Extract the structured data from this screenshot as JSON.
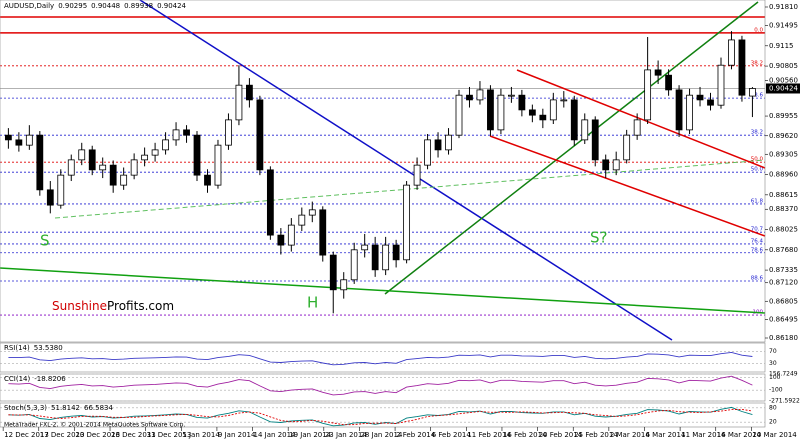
{
  "chart_data": [
    {
      "type": "candlestick",
      "title": "AUDUSD,Daily",
      "up_color": "#ffffff",
      "down_color": "#000000",
      "outline_color": "#000000",
      "candles": {
        "open": [
          0.8963,
          0.8955,
          0.8946,
          0.8963,
          0.887,
          0.8844,
          0.8895,
          0.8921,
          0.8938,
          0.8904,
          0.8912,
          0.8878,
          0.8895,
          0.8921,
          0.8929,
          0.8938,
          0.8955,
          0.8972,
          0.8963,
          0.8895,
          0.8878,
          0.8946,
          0.8989,
          0.9048,
          0.9023,
          0.8904,
          0.8793,
          0.8776,
          0.881,
          0.8827,
          0.8836,
          0.8759,
          0.87,
          0.8717,
          0.8768,
          0.8776,
          0.8734,
          0.8776,
          0.8751,
          0.8878,
          0.8912,
          0.8955,
          0.8938,
          0.8963,
          0.9031,
          0.9023,
          0.904,
          0.8972,
          0.9031,
          0.9031,
          0.9006,
          0.8997,
          0.8989,
          0.9023,
          0.9023,
          0.8955,
          0.8989,
          0.8921,
          0.8904,
          0.8921,
          0.8963,
          0.8989,
          0.9074,
          0.9065,
          0.904,
          0.8972,
          0.9031,
          0.9023,
          0.9014,
          0.9082,
          0.9125,
          0.90295
        ],
        "high": [
          0.8975,
          0.8968,
          0.898,
          0.897,
          0.8885,
          0.8905,
          0.893,
          0.895,
          0.8945,
          0.8925,
          0.892,
          0.8908,
          0.8932,
          0.8942,
          0.895,
          0.8968,
          0.8985,
          0.898,
          0.897,
          0.8905,
          0.8955,
          0.9,
          0.9082,
          0.906,
          0.903,
          0.891,
          0.8805,
          0.8822,
          0.884,
          0.885,
          0.8842,
          0.8765,
          0.873,
          0.878,
          0.8795,
          0.879,
          0.879,
          0.8785,
          0.8885,
          0.8925,
          0.8965,
          0.8968,
          0.8975,
          0.904,
          0.9045,
          0.9055,
          0.9048,
          0.9042,
          0.9045,
          0.904,
          0.9015,
          0.9008,
          0.9035,
          0.9038,
          0.903,
          0.9,
          0.8995,
          0.893,
          0.8935,
          0.8972,
          0.9,
          0.913,
          0.909,
          0.9075,
          0.9048,
          0.9042,
          0.9045,
          0.9035,
          0.9095,
          0.914,
          0.9132,
          0.90448
        ],
        "low": [
          0.894,
          0.8935,
          0.8938,
          0.886,
          0.883,
          0.8838,
          0.8885,
          0.8912,
          0.8895,
          0.889,
          0.8865,
          0.887,
          0.8888,
          0.891,
          0.8918,
          0.893,
          0.8945,
          0.895,
          0.8885,
          0.8865,
          0.8872,
          0.8938,
          0.898,
          0.901,
          0.8895,
          0.8785,
          0.876,
          0.8765,
          0.88,
          0.8815,
          0.8748,
          0.866,
          0.8685,
          0.871,
          0.8755,
          0.8722,
          0.8725,
          0.8738,
          0.8745,
          0.887,
          0.8905,
          0.8925,
          0.893,
          0.8958,
          0.901,
          0.9015,
          0.8962,
          0.8965,
          0.9018,
          0.8995,
          0.8985,
          0.8975,
          0.8982,
          0.901,
          0.8945,
          0.8948,
          0.891,
          0.889,
          0.8895,
          0.8915,
          0.8955,
          0.8982,
          0.905,
          0.903,
          0.896,
          0.8965,
          0.9012,
          0.9005,
          0.9008,
          0.9075,
          0.902,
          0.89938
        ],
        "close": [
          0.8955,
          0.8946,
          0.8963,
          0.887,
          0.8844,
          0.8895,
          0.8921,
          0.8938,
          0.8904,
          0.8912,
          0.8878,
          0.8895,
          0.8921,
          0.8929,
          0.8938,
          0.8955,
          0.8972,
          0.8963,
          0.8895,
          0.8878,
          0.8946,
          0.8989,
          0.9048,
          0.9023,
          0.8904,
          0.8793,
          0.8776,
          0.881,
          0.8827,
          0.8836,
          0.8759,
          0.87,
          0.8717,
          0.8768,
          0.8776,
          0.8734,
          0.8776,
          0.8751,
          0.8878,
          0.8912,
          0.8955,
          0.8938,
          0.8963,
          0.9031,
          0.9023,
          0.904,
          0.8972,
          0.9031,
          0.9031,
          0.9006,
          0.8997,
          0.8989,
          0.9023,
          0.9023,
          0.8955,
          0.8989,
          0.8921,
          0.8904,
          0.8921,
          0.8963,
          0.8989,
          0.9074,
          0.9065,
          0.904,
          0.8972,
          0.9031,
          0.9023,
          0.9014,
          0.9082,
          0.9125,
          0.9031,
          0.90424
        ]
      },
      "xlim": [
        -0.8,
        72.2
      ],
      "xticks": [
        {
          "value": -0.5,
          "label": "12 Dec 2013"
        },
        {
          "value": 2.9,
          "label": "17 Dec 2013"
        },
        {
          "value": 6.3,
          "label": "20 Dec 2013"
        },
        {
          "value": 9.7,
          "label": "26 Dec 2013"
        },
        {
          "value": 13.1,
          "label": "31 Dec 2013"
        },
        {
          "value": 16.5,
          "label": "5 Jan 2014"
        },
        {
          "value": 19.9,
          "label": "9 Jan 2014"
        },
        {
          "value": 23.3,
          "label": "14 Jan 2014"
        },
        {
          "value": 26.7,
          "label": "19 Jan 2014"
        },
        {
          "value": 30.1,
          "label": "23 Jan 2014"
        },
        {
          "value": 33.5,
          "label": "28 Jan 2014"
        },
        {
          "value": 36.9,
          "label": "2 Feb 2014"
        },
        {
          "value": 40.3,
          "label": "6 Feb 2014"
        },
        {
          "value": 43.7,
          "label": "11 Feb 2014"
        },
        {
          "value": 47.1,
          "label": "16 Feb 2014"
        },
        {
          "value": 50.5,
          "label": "20 Feb 2014"
        },
        {
          "value": 53.9,
          "label": "25 Feb 2014"
        },
        {
          "value": 57.3,
          "label": "2 Mar 2014"
        },
        {
          "value": 60.7,
          "label": "6 Mar 2014"
        },
        {
          "value": 64.1,
          "label": "11 Mar 2014"
        },
        {
          "value": 67.5,
          "label": "16 Mar 2014"
        },
        {
          "value": 70.9,
          "label": "20 Mar 2014"
        }
      ],
      "ylim": [
        0.86112,
        0.91929
      ],
      "yticks": [
        {
          "value": 0.9181,
          "label": "0.91810"
        },
        0.91495,
        0.9115,
        0.90805,
        {
          "value": 0.9056,
          "label": "0.90560"
        },
        0.89955,
        {
          "value": 0.8962,
          "label": "0.89620"
        },
        0.89305,
        {
          "value": 0.8896,
          "label": "0.88960"
        },
        0.88615,
        {
          "value": 0.8837,
          "label": "0.88370"
        },
        0.88025,
        {
          "value": 0.8768,
          "label": "0.87680"
        },
        0.87335,
        {
          "value": 0.8712,
          "label": "0.87120"
        },
        0.86805,
        0.86495,
        {
          "value": 0.8618,
          "label": "0.86180"
        }
      ],
      "levels": [
        {
          "value": 0.9164,
          "color": "#e00000",
          "style": "solid"
        },
        {
          "value": 0.9137,
          "label": "0.0",
          "color": "#e00000",
          "style": "solid"
        },
        {
          "value": 0.9081,
          "label": "38.2",
          "color": "#e00000",
          "style": "dotted"
        },
        {
          "value": 0.9026,
          "label": "23.6",
          "color": "#2020d0",
          "style": "dotted"
        },
        {
          "value": 0.8963,
          "label": "38.2",
          "color": "#2020d0",
          "style": "dotted"
        },
        {
          "value": 0.8917,
          "label": "50.0",
          "color": "#e00000",
          "style": "dotted"
        },
        {
          "value": 0.89,
          "label": "50.0",
          "color": "#2020d0",
          "style": "dotted"
        },
        {
          "value": 0.8846,
          "label": "61.8",
          "color": "#2020d0",
          "style": "dotted"
        },
        {
          "value": 0.8798,
          "label": "70.7",
          "color": "#2020d0",
          "style": "dotted"
        },
        {
          "value": 0.8778,
          "label": "76.4",
          "color": "#2020d0",
          "style": "dotted"
        },
        {
          "value": 0.8763,
          "label": "78.6",
          "color": "#2020d0",
          "style": "dotted"
        },
        {
          "value": 0.8715,
          "label": "88.6",
          "color": "#2020d0",
          "style": "dotted"
        },
        {
          "value": 0.8657,
          "label": "100",
          "color": "#8000c0",
          "style": "dotted"
        }
      ],
      "annotations": [
        "S",
        "S?",
        "H"
      ],
      "watermark": [
        "Sunshine",
        "Profits.com"
      ],
      "footer": "MetaTrader FXL-2, © 2001-2014 MetaQuotes Software Corp."
    },
    {
      "type": "line",
      "title": "RSI(14)",
      "ylim": [
        0,
        100
      ],
      "yticks": [
        70,
        30
      ],
      "series": [
        {
          "color": "#3a3ac8",
          "last_label": "53.5380",
          "values": [
            50.5,
            49.6,
            51.3,
            42.0,
            39.4,
            44.5,
            47.1,
            48.8,
            45.4,
            46.2,
            42.8,
            44.5,
            47.1,
            47.9,
            48.8,
            50.5,
            52.2,
            51.3,
            44.5,
            42.8,
            49.6,
            53.9,
            59.8,
            57.3,
            45.4,
            34.3,
            32.6,
            36.0,
            37.7,
            38.6,
            30.9,
            25.0,
            26.7,
            31.8,
            32.6,
            28.4,
            32.6,
            30.1,
            42.8,
            46.2,
            50.5,
            48.8,
            51.3,
            58.1,
            57.3,
            59.0,
            52.2,
            58.1,
            58.1,
            55.6,
            54.7,
            53.9,
            57.3,
            57.3,
            50.5,
            53.9,
            47.1,
            45.4,
            47.1,
            51.3,
            53.9,
            62.4,
            61.5,
            59.0,
            52.2,
            58.1,
            57.3,
            56.4,
            63.2,
            67.5,
            58.1,
            53.538
          ]
        }
      ]
    },
    {
      "type": "line",
      "title": "CCI(14)",
      "ylim": [
        -271.5922,
        156.7249
      ],
      "yticks": [
        156.7249,
        100,
        -100,
        -271.5922
      ],
      "series": [
        {
          "color": "#a020a0",
          "last_label": "-18.8206",
          "values": [
            3.5,
            -2.8,
            9.1,
            -56,
            -74.2,
            -38.5,
            -20.3,
            -8.4,
            -32.2,
            -26.6,
            -50.4,
            -38.5,
            -20.3,
            -14.7,
            -8.4,
            3.5,
            15.4,
            9.1,
            -38.5,
            -50.4,
            -2.8,
            27.3,
            68.6,
            51.1,
            -32.2,
            -109.9,
            -121.8,
            -98,
            -86.1,
            -79.8,
            -133.7,
            -175,
            -163.1,
            -127.4,
            -121.8,
            -151.2,
            -121.8,
            -139.3,
            -50.4,
            -26.6,
            3.5,
            -8.4,
            9.1,
            56.7,
            51.1,
            63,
            15.4,
            56.7,
            56.7,
            39.2,
            32.9,
            27.3,
            51.1,
            51.1,
            3.5,
            27.3,
            -20.3,
            -32.2,
            -20.3,
            9.1,
            27.3,
            86.8,
            80.5,
            63,
            15.4,
            56.7,
            51.1,
            44.8,
            92.4,
            122.5,
            56.7,
            -18.8206
          ]
        }
      ]
    },
    {
      "type": "line",
      "title": "Stoch(5,3,3)",
      "ylim": [
        0,
        100
      ],
      "yticks": [
        80,
        20
      ],
      "series": [
        {
          "color": "#008080",
          "last_label": "51.8142",
          "values": [
            50.9,
            49.3,
            52.3,
            35.6,
            31.0,
            40.1,
            44.8,
            47.8,
            41.7,
            43.2,
            37.0,
            40.1,
            44.8,
            46.2,
            47.8,
            50.9,
            54.0,
            52.3,
            40.1,
            37.0,
            49.3,
            57.0,
            67.6,
            63.1,
            41.7,
            21.7,
            18.7,
            24.8,
            27.9,
            29.5,
            15.6,
            5.0,
            8.1,
            17.2,
            18.7,
            11.1,
            18.7,
            14.2,
            37.0,
            43.2,
            50.9,
            47.8,
            52.3,
            64.6,
            63.1,
            66.2,
            54.0,
            64.6,
            64.6,
            60.1,
            58.5,
            57.0,
            63.1,
            63.1,
            50.9,
            57.0,
            44.8,
            41.7,
            44.8,
            52.3,
            57.0,
            72.3,
            70.7,
            66.2,
            54.0,
            64.6,
            63.1,
            61.5,
            73.8,
            81.5,
            64.6,
            51.8142
          ]
        },
        {
          "color": "#e00000",
          "last_label": "66.5834",
          "values": [
            50.9,
            50.1,
            50.8,
            45.7,
            39.6,
            35.6,
            38.6,
            44.2,
            44.8,
            44.2,
            40.6,
            40.1,
            40.6,
            43.7,
            46.3,
            48.3,
            50.9,
            52.4,
            48.8,
            43.1,
            42.1,
            47.8,
            57.9,
            62.6,
            57.5,
            42.2,
            27.4,
            21.7,
            23.8,
            27.4,
            24.3,
            16.7,
            9.6,
            10.1,
            14.7,
            15.7,
            16.2,
            14.7,
            23.3,
            31.5,
            43.7,
            47.3,
            50.3,
            54.9,
            60.0,
            64.6,
            61.1,
            61.6,
            61.1,
            63.1,
            61.1,
            58.5,
            59.5,
            61.1,
            59.0,
            57.0,
            50.9,
            47.8,
            43.8,
            46.3,
            51.4,
            60.5,
            66.7,
            69.7,
            63.6,
            61.6,
            60.6,
            63.1,
            66.1,
            72.3,
            73.3,
            66.5834
          ]
        }
      ]
    }
  ]
}
